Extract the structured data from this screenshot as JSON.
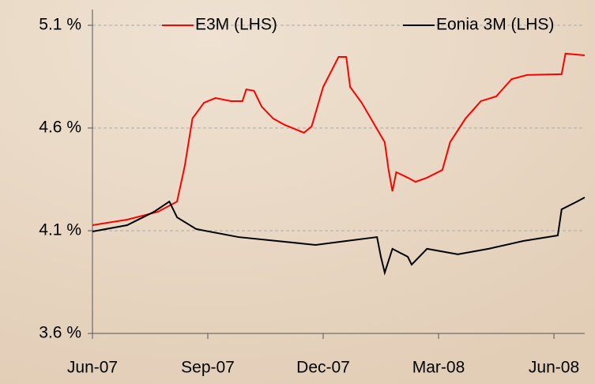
{
  "chart_data": {
    "type": "line",
    "series": [
      {
        "name": "E3M (LHS)",
        "color": "#ff0000",
        "x": [
          0,
          0.9,
          1.7,
          2.2,
          2.4,
          2.6,
          2.9,
          3.2,
          3.6,
          3.9,
          4.0,
          4.2,
          4.4,
          4.7,
          5.0,
          5.5,
          5.7,
          6.0,
          6.4,
          6.6,
          6.7,
          7.0,
          7.3,
          7.6,
          7.7,
          7.8,
          7.9,
          8.2,
          8.4,
          8.7,
          9.1,
          9.3,
          9.7,
          10.1,
          10.5,
          10.9,
          11.3,
          12.2,
          12.3,
          12.8
        ],
        "values": [
          4.127,
          4.154,
          4.192,
          4.242,
          4.415,
          4.646,
          4.723,
          4.746,
          4.731,
          4.731,
          4.788,
          4.781,
          4.704,
          4.646,
          4.615,
          4.577,
          4.608,
          4.8,
          4.946,
          4.946,
          4.8,
          4.723,
          4.627,
          4.531,
          4.396,
          4.292,
          4.385,
          4.358,
          4.338,
          4.358,
          4.396,
          4.531,
          4.646,
          4.731,
          4.754,
          4.838,
          4.858,
          4.862,
          4.962,
          4.954
        ]
      },
      {
        "name": "Eonia 3M (LHS)",
        "color": "#000000",
        "x": [
          0,
          0.9,
          1.6,
          2.0,
          2.2,
          2.7,
          3.8,
          4.8,
          5.8,
          6.6,
          7.4,
          7.5,
          7.6,
          7.8,
          8.2,
          8.3,
          8.7,
          9.5,
          10.3,
          11.2,
          12.1,
          12.2,
          12.6,
          12.8
        ],
        "values": [
          4.096,
          4.127,
          4.192,
          4.242,
          4.165,
          4.108,
          4.069,
          4.05,
          4.031,
          4.05,
          4.069,
          3.973,
          3.896,
          4.012,
          3.973,
          3.935,
          4.012,
          3.985,
          4.012,
          4.05,
          4.077,
          4.204,
          4.242,
          4.262
        ]
      }
    ],
    "xlim": [
      0,
      12.8
    ],
    "xticks": [
      {
        "value": 0,
        "label": "Jun-07"
      },
      {
        "value": 3,
        "label": "Sep-07"
      },
      {
        "value": 6,
        "label": "Dec-07"
      },
      {
        "value": 9,
        "label": "Mar-08"
      },
      {
        "value": 12,
        "label": "Jun-08"
      }
    ],
    "ylim": [
      3.6,
      5.1
    ],
    "yticks": [
      {
        "value": 3.6,
        "label": "3.6 %"
      },
      {
        "value": 4.1,
        "label": "4.1 %"
      },
      {
        "value": 4.6,
        "label": "4.6 %"
      },
      {
        "value": 5.1,
        "label": "5.1 %"
      }
    ],
    "grid": true
  }
}
